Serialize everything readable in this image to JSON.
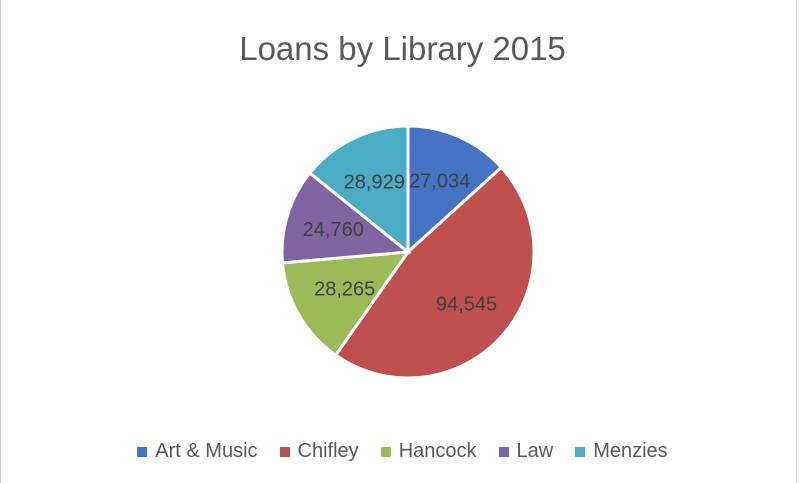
{
  "top_caption": "",
  "chart_data": {
    "type": "pie",
    "title": "Loans by Library 2015",
    "categories": [
      "Art & Music",
      "Chifley",
      "Hancock",
      "Law",
      "Menzies"
    ],
    "values": [
      27034,
      94545,
      28265,
      24760,
      28929
    ],
    "data_labels": [
      "27,034",
      "94,545",
      "28,265",
      "24,760",
      "28,929"
    ],
    "colors": [
      "#4472C4",
      "#C0504D",
      "#9BBB59",
      "#8064A2",
      "#4BACC6"
    ],
    "legend_position": "bottom",
    "start_angle_deg": 0,
    "direction": "clockwise"
  }
}
